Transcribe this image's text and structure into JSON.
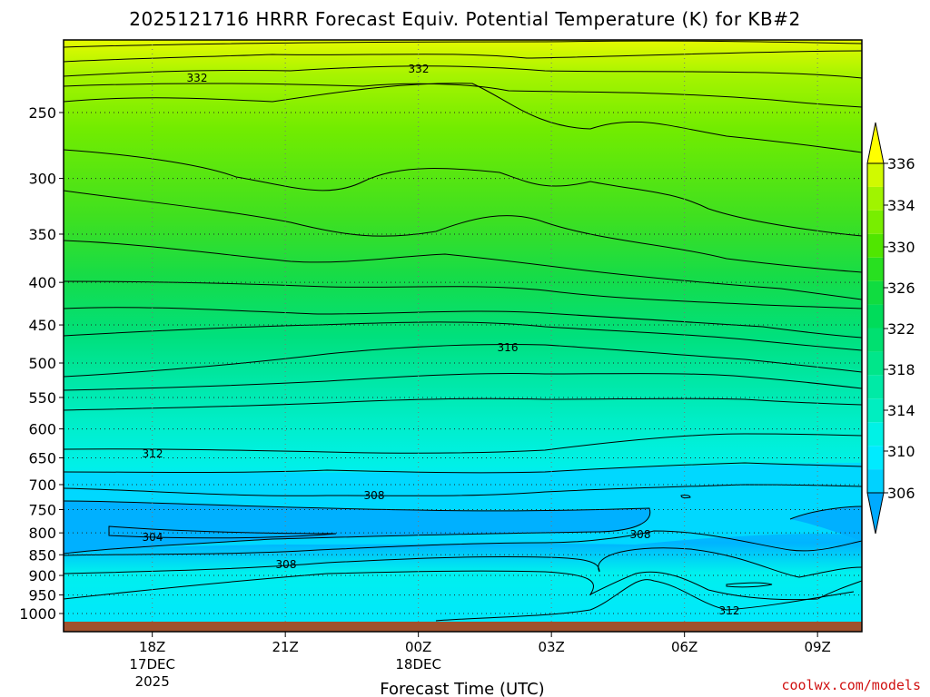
{
  "chart_data": {
    "type": "contour",
    "title": "2025121716 HRRR Forecast Equiv. Potential Temperature (K) for KB#2",
    "xlabel": "Forecast Time (UTC)",
    "ylabel": "",
    "y_axis_scale": "log-pressure (hPa), inverted",
    "ylim": [
      1020,
      195
    ],
    "y_ticks": [
      250,
      300,
      350,
      400,
      450,
      500,
      550,
      600,
      650,
      700,
      750,
      800,
      850,
      900,
      950,
      1000
    ],
    "y_tick_labels": [
      "250",
      "300",
      "350",
      "400",
      "450",
      "500",
      "550",
      "600",
      "650",
      "700",
      "750",
      "800",
      "850",
      "900",
      "950",
      "1000"
    ],
    "x_ticks": [
      {
        "label": "18Z",
        "sub1": "17DEC",
        "sub2": "2025",
        "hour": 18
      },
      {
        "label": "21Z",
        "sub1": "",
        "sub2": "",
        "hour": 21
      },
      {
        "label": "00Z",
        "sub1": "18DEC",
        "sub2": "",
        "hour": 24
      },
      {
        "label": "03Z",
        "sub1": "",
        "sub2": "",
        "hour": 27
      },
      {
        "label": "06Z",
        "sub1": "",
        "sub2": "",
        "hour": 30
      },
      {
        "label": "09Z",
        "sub1": "",
        "sub2": "",
        "hour": 33
      }
    ],
    "xlim_hours": [
      16,
      34
    ],
    "colorbar": {
      "levels": [
        306,
        308,
        310,
        312,
        314,
        316,
        318,
        320,
        322,
        324,
        326,
        328,
        330,
        332,
        334,
        336
      ],
      "labels": [
        "306",
        "310",
        "314",
        "318",
        "322",
        "326",
        "330",
        "334",
        "336"
      ],
      "colors": [
        "#00aaff",
        "#00d2ff",
        "#00ebff",
        "#00f2e6",
        "#00eec0",
        "#00eaa6",
        "#00e68a",
        "#00e070",
        "#00dc5a",
        "#10dc40",
        "#28e020",
        "#50e600",
        "#78ee00",
        "#a0f400",
        "#d0fa00",
        "#ffff00"
      ]
    },
    "contour_labels": [
      {
        "text": "332"
      },
      {
        "text": "332"
      },
      {
        "text": "316"
      },
      {
        "text": "312"
      },
      {
        "text": "308"
      },
      {
        "text": "304"
      },
      {
        "text": "308"
      },
      {
        "text": "308"
      },
      {
        "text": "312"
      }
    ],
    "surface_color": "#a0522d",
    "grid": "dotted"
  },
  "credit": "coolwx.com/models"
}
